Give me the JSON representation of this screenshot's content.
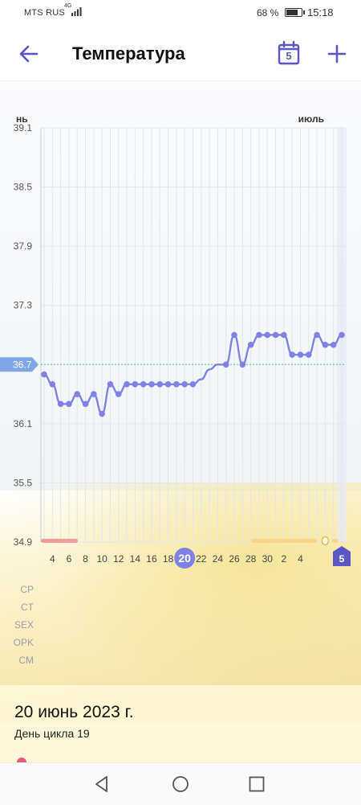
{
  "status_bar": {
    "carrier": "MTS RUS",
    "network": "4G",
    "battery": "68 %",
    "time": "15:18"
  },
  "app_bar": {
    "title": "Температура",
    "calendar_day": "5"
  },
  "chart_data": {
    "type": "line",
    "title": "",
    "xlabel": "",
    "ylabel": "",
    "month_left": "нь",
    "month_right": "июль",
    "ylim": [
      34.9,
      39.1
    ],
    "y_ticks": [
      "39.1",
      "38.5",
      "37.9",
      "37.3",
      "36.7",
      "36.1",
      "35.5",
      "34.9"
    ],
    "reference_line": {
      "value": 36.7,
      "label": "36.7"
    },
    "x_tick_labels": [
      "4",
      "6",
      "8",
      "10",
      "12",
      "14",
      "16",
      "18",
      "20",
      "22",
      "24",
      "26",
      "28",
      "30",
      "2",
      "4",
      "5"
    ],
    "selected_day": "20",
    "today_label": "5",
    "grid": true,
    "series": [
      {
        "color": "#7f82e4",
        "values": [
          36.6,
          36.5,
          36.3,
          36.3,
          36.4,
          36.3,
          36.4,
          36.2,
          36.5,
          36.4,
          36.5,
          36.5,
          36.5,
          36.5,
          36.5,
          36.5,
          36.5,
          36.5,
          36.5,
          36.55,
          36.65,
          36.7,
          36.7,
          37.0,
          36.7,
          36.9,
          37.0,
          37.0,
          37.0,
          37.0,
          36.8,
          36.8,
          36.8,
          37.0,
          36.9,
          36.9,
          37.0
        ],
        "measured": [
          true,
          true,
          true,
          true,
          true,
          true,
          true,
          true,
          true,
          true,
          true,
          true,
          true,
          true,
          true,
          true,
          true,
          true,
          true,
          false,
          false,
          false,
          true,
          true,
          true,
          true,
          true,
          true,
          true,
          true,
          true,
          true,
          true,
          true,
          true,
          true,
          true
        ]
      }
    ]
  },
  "legend_rows": [
    "CP",
    "CT",
    "SEX",
    "OPK",
    "CM"
  ],
  "colors": {
    "accent": "#7f82e4",
    "accent_dark": "#5a57c7",
    "period": "#f29a9a",
    "fertile": "#f6d58a",
    "heart": "#d061c8",
    "reference_line": "#4bb89a"
  },
  "selected": {
    "date": "20 июнь 2023 г.",
    "cycle_day": "День цикла 19"
  }
}
